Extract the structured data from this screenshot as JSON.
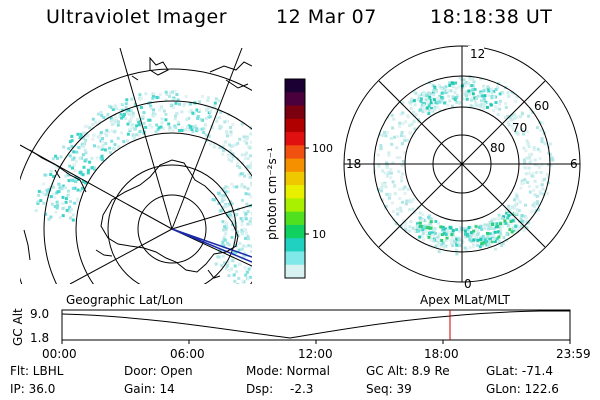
{
  "header": {
    "instrument": "Ultraviolet Imager",
    "date": "12 Mar 07",
    "time": "18:18:38 UT"
  },
  "colorbar": {
    "unit_label": "photon cm⁻²s⁻¹",
    "tick_labels": [
      "100",
      "10"
    ],
    "colors": [
      "#1a0033",
      "#4a003d",
      "#7a0010",
      "#b00000",
      "#e01010",
      "#f05010",
      "#f59000",
      "#f0c800",
      "#e8f000",
      "#a8f000",
      "#50e020",
      "#10d060",
      "#20d0c0",
      "#80e8e8",
      "#d8f2f2"
    ]
  },
  "left_map": {
    "title": "Geographic Lat/Lon"
  },
  "right_map": {
    "title": "Apex  MLat/MLT",
    "mlt_labels": {
      "top": "12",
      "left": "18",
      "right": "6",
      "bottom": "0"
    },
    "lat_labels": [
      "60",
      "70",
      "80"
    ]
  },
  "altitude_plot": {
    "ylabel": "GC Alt",
    "y_ticks": [
      "9.0",
      "1.8"
    ],
    "x_ticks": [
      "00:00",
      "06:00",
      "12:00",
      "18:00",
      "23:59"
    ],
    "marker_color": "#cc0000"
  },
  "info": {
    "flt": "Flt: LBHL",
    "ip": "IP: 36.0",
    "door": "Door: Open",
    "gain": "Gain: 14",
    "mode": "Mode: Normal",
    "dsp_label": "Dsp:",
    "dsp_value": "-2.3",
    "gcalt": "GC Alt: 8.9 Re",
    "seq": "Seq: 39",
    "glat": "GLat: -71.4",
    "glon": "GLon: 122.6"
  }
}
